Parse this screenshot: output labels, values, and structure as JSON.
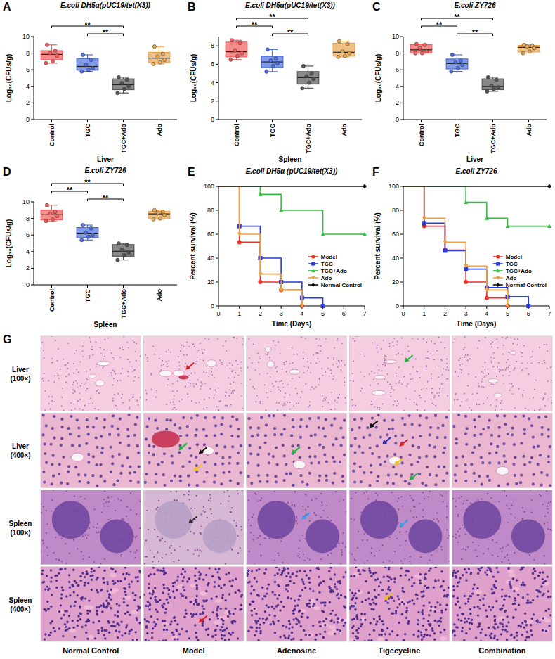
{
  "chart_data": [
    {
      "panel": "A",
      "type": "box",
      "title": "E.coli DH5α(pUC19/tet(X3))",
      "xlabel": "Liver",
      "ylabel": "Log₁₀(CFUs/g)",
      "categories": [
        "Control",
        "TGC",
        "TGC+Ado",
        "Ado"
      ],
      "colors": [
        "#f25c5c",
        "#4a6ee0",
        "#555555",
        "#e9a650"
      ],
      "ylim": [
        0,
        10
      ],
      "yticks": [
        0,
        2,
        4,
        6,
        8,
        10
      ],
      "values": [
        [
          9.0,
          8.3,
          8.0,
          7.7,
          7.0,
          6.8
        ],
        [
          7.8,
          7.2,
          6.6,
          6.2,
          6.0,
          5.8
        ],
        [
          5.1,
          4.8,
          4.4,
          4.0,
          3.7,
          3.2
        ],
        [
          8.8,
          7.9,
          7.6,
          7.2,
          6.9,
          6.7
        ]
      ],
      "boxes": [
        {
          "min": 6.8,
          "q1": 7.2,
          "median": 7.85,
          "q3": 8.3,
          "max": 9.0
        },
        {
          "min": 5.8,
          "q1": 5.95,
          "median": 6.4,
          "q3": 7.35,
          "max": 7.8
        },
        {
          "min": 3.2,
          "q1": 3.6,
          "median": 4.2,
          "q3": 4.9,
          "max": 5.1
        },
        {
          "min": 6.7,
          "q1": 6.85,
          "median": 7.4,
          "q3": 8.1,
          "max": 8.8
        }
      ],
      "comparisons": [
        {
          "pair": [
            "Control",
            "TGC+Ado"
          ],
          "label": "**"
        },
        {
          "pair": [
            "TGC",
            "TGC+Ado"
          ],
          "label": "**"
        }
      ]
    },
    {
      "panel": "B",
      "type": "box",
      "title": "E.coli DH5α(pUC19/tet(X3))",
      "xlabel": "Spleen",
      "ylabel": "Log₁₀(CFUs/g)",
      "categories": [
        "Control",
        "TGC",
        "TGC+Ado",
        "Ado"
      ],
      "colors": [
        "#f25c5c",
        "#4a6ee0",
        "#555555",
        "#e9a650"
      ],
      "ylim": [
        0,
        9
      ],
      "yticks": [
        0,
        2,
        4,
        6,
        8
      ],
      "values": [
        [
          8.6,
          8.3,
          7.5,
          7.2,
          6.9,
          6.5
        ],
        [
          7.6,
          6.6,
          6.4,
          6.1,
          5.8,
          5.2
        ],
        [
          5.8,
          5.0,
          4.7,
          4.4,
          4.0,
          3.4
        ],
        [
          8.5,
          8.2,
          7.4,
          7.2,
          6.9,
          6.8
        ]
      ],
      "boxes": [
        {
          "min": 6.5,
          "q1": 6.8,
          "median": 7.35,
          "q3": 8.4,
          "max": 8.6
        },
        {
          "min": 5.2,
          "q1": 5.65,
          "median": 6.25,
          "q3": 6.85,
          "max": 7.6
        },
        {
          "min": 3.4,
          "q1": 3.85,
          "median": 4.55,
          "q3": 5.2,
          "max": 5.8
        },
        {
          "min": 6.8,
          "q1": 6.875,
          "median": 7.3,
          "q3": 8.275,
          "max": 8.5
        }
      ],
      "comparisons": [
        {
          "pair": [
            "Control",
            "TGC+Ado"
          ],
          "label": "**"
        },
        {
          "pair": [
            "Control",
            "TGC"
          ],
          "label": "**"
        },
        {
          "pair": [
            "TGC",
            "TGC+Ado"
          ],
          "label": "**"
        }
      ]
    },
    {
      "panel": "C",
      "type": "box",
      "title": "E.coli ZY726",
      "xlabel": "Liver",
      "ylabel": "Log₁₀(CFUs/g)",
      "categories": [
        "Control",
        "TGC",
        "TGC+Ado",
        "Ado"
      ],
      "colors": [
        "#f25c5c",
        "#4a6ee0",
        "#555555",
        "#e9a650"
      ],
      "ylim": [
        0,
        10
      ],
      "yticks": [
        0,
        2,
        4,
        6,
        8,
        10
      ],
      "values": [
        [
          9.1,
          9.0,
          8.6,
          8.2,
          8.0,
          8.0
        ],
        [
          7.8,
          7.1,
          6.9,
          6.6,
          6.2,
          5.8
        ],
        [
          5.1,
          4.8,
          4.1,
          3.9,
          3.7,
          3.4
        ],
        [
          9.0,
          8.9,
          8.8,
          8.6,
          8.2,
          8.0
        ]
      ],
      "boxes": [
        {
          "min": 8.0,
          "q1": 8.0,
          "median": 8.4,
          "q3": 9.03,
          "max": 9.1
        },
        {
          "min": 5.8,
          "q1": 6.1,
          "median": 6.75,
          "q3": 7.3,
          "max": 7.8
        },
        {
          "min": 3.4,
          "q1": 3.6,
          "median": 4.0,
          "q3": 4.9,
          "max": 5.1
        },
        {
          "min": 8.0,
          "q1": 8.15,
          "median": 8.7,
          "q3": 8.93,
          "max": 9.0
        }
      ],
      "comparisons": [
        {
          "pair": [
            "Control",
            "TGC+Ado"
          ],
          "label": "**"
        },
        {
          "pair": [
            "Control",
            "TGC"
          ],
          "label": "**"
        },
        {
          "pair": [
            "TGC",
            "TGC+Ado"
          ],
          "label": "**"
        }
      ]
    },
    {
      "panel": "D",
      "type": "box",
      "title": "E.coli ZY726",
      "xlabel": "Spleen",
      "ylabel": "Log₁₀(CFUs/g)",
      "categories": [
        "Control",
        "TGC",
        "TGC+Ado",
        "Ado"
      ],
      "colors": [
        "#f25c5c",
        "#4a6ee0",
        "#555555",
        "#e9a650"
      ],
      "ylim": [
        0,
        10
      ],
      "yticks": [
        0,
        2,
        4,
        6,
        8,
        10
      ],
      "values": [
        [
          9.6,
          8.8,
          8.6,
          8.3,
          7.9,
          7.7
        ],
        [
          7.2,
          6.8,
          6.3,
          6.0,
          5.8,
          5.4
        ],
        [
          5.0,
          4.8,
          4.2,
          3.9,
          3.6,
          3.0
        ],
        [
          9.0,
          8.8,
          8.7,
          8.4,
          8.0,
          7.9
        ]
      ],
      "boxes": [
        {
          "min": 7.7,
          "q1": 7.85,
          "median": 8.45,
          "q3": 9.0,
          "max": 9.6
        },
        {
          "min": 5.4,
          "q1": 5.7,
          "median": 6.15,
          "q3": 6.9,
          "max": 7.2
        },
        {
          "min": 3.0,
          "q1": 3.45,
          "median": 4.05,
          "q3": 4.85,
          "max": 5.0
        },
        {
          "min": 7.9,
          "q1": 7.95,
          "median": 8.55,
          "q3": 8.85,
          "max": 9.0
        }
      ],
      "comparisons": [
        {
          "pair": [
            "Control",
            "TGC+Ado"
          ],
          "label": "**"
        },
        {
          "pair": [
            "Control",
            "TGC"
          ],
          "label": "**"
        },
        {
          "pair": [
            "TGC",
            "TGC+Ado"
          ],
          "label": "**"
        }
      ]
    },
    {
      "panel": "E",
      "type": "step",
      "title": "E.coli DH5α (pUC19/tet(X3))",
      "xlabel": "Time (Days)",
      "ylabel": "Percent survival (%)",
      "xlim": [
        0,
        7
      ],
      "xticks": [
        0,
        1,
        2,
        3,
        4,
        5,
        6,
        7
      ],
      "ylim": [
        0,
        100
      ],
      "yticks": [
        0,
        20,
        40,
        60,
        80,
        100
      ],
      "legend": "lower right",
      "series": [
        {
          "name": "Model",
          "color": "#e8332a",
          "marker": "circle",
          "x": [
            0,
            1,
            2,
            3,
            4
          ],
          "values": [
            100,
            53.3,
            20,
            13.3,
            0
          ]
        },
        {
          "name": "TGC",
          "color": "#2a3cd6",
          "marker": "square",
          "x": [
            0,
            1,
            2,
            3,
            4,
            5
          ],
          "values": [
            100,
            66.7,
            40,
            20,
            6.7,
            0
          ]
        },
        {
          "name": "TGC+Ado",
          "color": "#30c040",
          "marker": "triangle",
          "x": [
            0,
            2,
            3,
            5,
            7
          ],
          "values": [
            100,
            93.3,
            80,
            60,
            60
          ]
        },
        {
          "name": "Ado",
          "color": "#f0a040",
          "marker": "triangle-down",
          "x": [
            0,
            1,
            2,
            3,
            4
          ],
          "values": [
            100,
            60,
            26.7,
            13.3,
            0
          ]
        },
        {
          "name": "Normal Control",
          "color": "#111111",
          "marker": "diamond",
          "x": [
            0,
            7
          ],
          "values": [
            100,
            100
          ]
        }
      ]
    },
    {
      "panel": "F",
      "type": "step",
      "title": "E.coli ZY726",
      "xlabel": "Time (Days)",
      "ylabel": "Percent survival (%)",
      "xlim": [
        0,
        7
      ],
      "xticks": [
        0,
        1,
        2,
        3,
        4,
        5,
        6,
        7
      ],
      "ylim": [
        0,
        100
      ],
      "yticks": [
        0,
        20,
        40,
        60,
        80,
        100
      ],
      "legend": "lower right",
      "series": [
        {
          "name": "Model",
          "color": "#e8332a",
          "marker": "circle",
          "x": [
            0,
            1,
            2,
            3,
            4,
            5
          ],
          "values": [
            100,
            66.7,
            46.7,
            20,
            6.7,
            0
          ]
        },
        {
          "name": "TGC",
          "color": "#2a3cd6",
          "marker": "square",
          "x": [
            0,
            1,
            2,
            3,
            4,
            5,
            6
          ],
          "values": [
            100,
            69.2,
            46.2,
            30.8,
            15.4,
            7.7,
            0
          ]
        },
        {
          "name": "TGC+Ado",
          "color": "#30c040",
          "marker": "triangle",
          "x": [
            0,
            3,
            4,
            5,
            7
          ],
          "values": [
            100,
            86.7,
            73.3,
            66.7,
            66.7
          ]
        },
        {
          "name": "Ado",
          "color": "#f0a040",
          "marker": "triangle-down",
          "x": [
            0,
            1,
            2,
            3,
            4,
            5
          ],
          "values": [
            100,
            73.3,
            53.3,
            33.3,
            13.3,
            0
          ]
        },
        {
          "name": "Normal Control",
          "color": "#111111",
          "marker": "diamond",
          "x": [
            0,
            7
          ],
          "values": [
            100,
            100
          ]
        }
      ]
    }
  ],
  "histology": {
    "panel": "G",
    "rows": [
      "Liver (100×)",
      "Liver (400×)",
      "Spleen (100×)",
      "Spleen (400×)"
    ],
    "columns": [
      "Normal Control",
      "Model",
      "Adenosine",
      "Tigecycline",
      "Combination"
    ]
  }
}
